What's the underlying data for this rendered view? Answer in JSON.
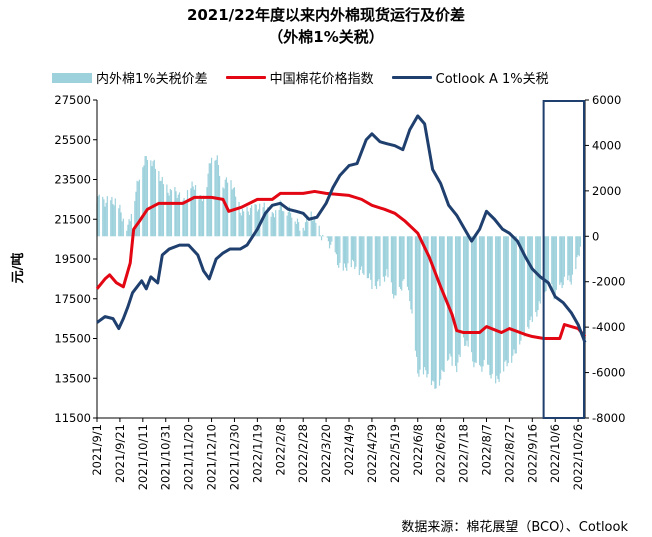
{
  "title": "2021/22年度以来内外棉现货运行及价差",
  "subtitle": "（外棉1%关税）",
  "source": "数据来源：棉花展望（BCO）、Cotlook",
  "colors": {
    "spread": "#9dd1dc",
    "cci": "#e30613",
    "cotlook": "#1f3f6e",
    "box": "#1f3f6e"
  },
  "chart_data": {
    "type": "bar+line",
    "title": "2021/22年度以来内外棉现货运行及价差",
    "subtitle": "（外棉1%关税）",
    "ylabel": "元/吨",
    "y2label": "",
    "ylim": [
      11500,
      27500
    ],
    "y2lim": [
      -8000,
      6000
    ],
    "yticks": [
      "27500",
      "25500",
      "23500",
      "21500",
      "19500",
      "17500",
      "15500",
      "13500",
      "11500"
    ],
    "y2ticks": [
      "6000",
      "4000",
      "2000",
      "0",
      "-2000",
      "-4000",
      "-6000",
      "-8000"
    ],
    "xticks": [
      "2021/9/1",
      "2021/9/21",
      "2021/10/11",
      "2021/10/31",
      "2021/11/20",
      "2021/12/10",
      "2021/12/30",
      "2022/1/19",
      "2022/2/8",
      "2022/2/28",
      "2022/3/20",
      "2022/4/9",
      "2022/4/29",
      "2022/5/19",
      "2022/6/8",
      "2022/6/28",
      "2022/7/18",
      "2022/8/7",
      "2022/8/27",
      "2022/9/16",
      "2022/10/6",
      "2022/10/26"
    ],
    "x_start": "2021-09-01",
    "x_end": "2022-11-01",
    "highlight_range": [
      "2022-09-25",
      "2022-11-01"
    ],
    "legend_position": "top",
    "series": [
      {
        "name": "内外棉1%关税价差",
        "type": "bar",
        "axis": "right",
        "points": [
          [
            "2021-09-01",
            1500
          ],
          [
            "2021-09-10",
            1700
          ],
          [
            "2021-09-20",
            1200
          ],
          [
            "2021-09-28",
            500
          ],
          [
            "2021-10-05",
            1800
          ],
          [
            "2021-10-10",
            3200
          ],
          [
            "2021-10-15",
            3700
          ],
          [
            "2021-10-20",
            3100
          ],
          [
            "2021-10-25",
            2700
          ],
          [
            "2021-10-31",
            2300
          ],
          [
            "2021-11-05",
            1800
          ],
          [
            "2021-11-10",
            1800
          ],
          [
            "2021-11-15",
            1600
          ],
          [
            "2021-11-20",
            2000
          ],
          [
            "2021-11-25",
            2100
          ],
          [
            "2021-11-30",
            1700
          ],
          [
            "2021-12-05",
            2200
          ],
          [
            "2021-12-10",
            3500
          ],
          [
            "2021-12-15",
            3300
          ],
          [
            "2021-12-20",
            2400
          ],
          [
            "2021-12-25",
            2600
          ],
          [
            "2021-12-30",
            1800
          ],
          [
            "2022-01-05",
            1200
          ],
          [
            "2022-01-10",
            1100
          ],
          [
            "2022-01-15",
            1000
          ],
          [
            "2022-01-19",
            1300
          ],
          [
            "2022-01-25",
            1400
          ],
          [
            "2022-02-01",
            700
          ],
          [
            "2022-02-08",
            1600
          ],
          [
            "2022-02-15",
            1000
          ],
          [
            "2022-02-22",
            700
          ],
          [
            "2022-02-28",
            500
          ],
          [
            "2022-03-07",
            800
          ],
          [
            "2022-03-14",
            400
          ],
          [
            "2022-03-20",
            -300
          ],
          [
            "2022-03-27",
            -700
          ],
          [
            "2022-04-03",
            -1400
          ],
          [
            "2022-04-09",
            -1400
          ],
          [
            "2022-04-15",
            -1200
          ],
          [
            "2022-04-22",
            -1500
          ],
          [
            "2022-04-29",
            -2200
          ],
          [
            "2022-05-05",
            -1900
          ],
          [
            "2022-05-12",
            -1800
          ],
          [
            "2022-05-19",
            -2700
          ],
          [
            "2022-05-26",
            -2000
          ],
          [
            "2022-06-01",
            -2800
          ],
          [
            "2022-06-08",
            -5800
          ],
          [
            "2022-06-15",
            -6100
          ],
          [
            "2022-06-22",
            -6500
          ],
          [
            "2022-06-28",
            -6200
          ],
          [
            "2022-07-05",
            -5400
          ],
          [
            "2022-07-12",
            -5600
          ],
          [
            "2022-07-18",
            -4700
          ],
          [
            "2022-07-25",
            -5300
          ],
          [
            "2022-08-01",
            -5800
          ],
          [
            "2022-08-07",
            -5800
          ],
          [
            "2022-08-14",
            -6300
          ],
          [
            "2022-08-21",
            -6000
          ],
          [
            "2022-08-27",
            -5500
          ],
          [
            "2022-09-03",
            -4700
          ],
          [
            "2022-09-10",
            -4300
          ],
          [
            "2022-09-16",
            -3500
          ],
          [
            "2022-09-23",
            -3000
          ],
          [
            "2022-10-01",
            -2000
          ],
          [
            "2022-10-06",
            -2500
          ],
          [
            "2022-10-13",
            -2200
          ],
          [
            "2022-10-20",
            -1800
          ],
          [
            "2022-10-26",
            -900
          ],
          [
            "2022-11-01",
            200
          ]
        ]
      },
      {
        "name": "中国棉花价格指数",
        "type": "line",
        "axis": "left",
        "points": [
          [
            "2021-09-01",
            18000
          ],
          [
            "2021-09-08",
            18500
          ],
          [
            "2021-09-12",
            18700
          ],
          [
            "2021-09-18",
            18300
          ],
          [
            "2021-09-24",
            18100
          ],
          [
            "2021-09-30",
            19300
          ],
          [
            "2021-10-03",
            21000
          ],
          [
            "2021-10-08",
            21400
          ],
          [
            "2021-10-15",
            22000
          ],
          [
            "2021-10-25",
            22300
          ],
          [
            "2021-11-05",
            22300
          ],
          [
            "2021-11-15",
            22300
          ],
          [
            "2021-11-25",
            22600
          ],
          [
            "2021-12-10",
            22600
          ],
          [
            "2021-12-20",
            22500
          ],
          [
            "2021-12-25",
            21900
          ],
          [
            "2022-01-05",
            22100
          ],
          [
            "2022-01-19",
            22500
          ],
          [
            "2022-02-01",
            22500
          ],
          [
            "2022-02-08",
            22800
          ],
          [
            "2022-02-28",
            22800
          ],
          [
            "2022-03-10",
            22900
          ],
          [
            "2022-03-20",
            22800
          ],
          [
            "2022-04-09",
            22700
          ],
          [
            "2022-04-20",
            22500
          ],
          [
            "2022-04-29",
            22200
          ],
          [
            "2022-05-10",
            22000
          ],
          [
            "2022-05-19",
            21800
          ],
          [
            "2022-05-28",
            21400
          ],
          [
            "2022-06-08",
            20800
          ],
          [
            "2022-06-18",
            19600
          ],
          [
            "2022-06-28",
            18100
          ],
          [
            "2022-07-08",
            16700
          ],
          [
            "2022-07-12",
            15900
          ],
          [
            "2022-07-18",
            15800
          ],
          [
            "2022-08-01",
            15800
          ],
          [
            "2022-08-07",
            16100
          ],
          [
            "2022-08-20",
            15800
          ],
          [
            "2022-08-27",
            16000
          ],
          [
            "2022-09-10",
            15700
          ],
          [
            "2022-09-16",
            15600
          ],
          [
            "2022-09-26",
            15500
          ],
          [
            "2022-10-06",
            15500
          ],
          [
            "2022-10-10",
            15500
          ],
          [
            "2022-10-14",
            16200
          ],
          [
            "2022-10-20",
            16100
          ],
          [
            "2022-10-26",
            16000
          ],
          [
            "2022-11-01",
            15600
          ]
        ]
      },
      {
        "name": "Cotlook A 1%关税",
        "type": "line",
        "axis": "left",
        "points": [
          [
            "2021-09-01",
            16300
          ],
          [
            "2021-09-08",
            16600
          ],
          [
            "2021-09-15",
            16500
          ],
          [
            "2021-09-20",
            16000
          ],
          [
            "2021-09-24",
            16500
          ],
          [
            "2021-09-28",
            17100
          ],
          [
            "2021-10-02",
            17800
          ],
          [
            "2021-10-06",
            18100
          ],
          [
            "2021-10-10",
            18400
          ],
          [
            "2021-10-14",
            18000
          ],
          [
            "2021-10-18",
            18600
          ],
          [
            "2021-10-24",
            18300
          ],
          [
            "2021-10-28",
            19700
          ],
          [
            "2021-11-03",
            20000
          ],
          [
            "2021-11-12",
            20200
          ],
          [
            "2021-11-20",
            20200
          ],
          [
            "2021-11-28",
            19700
          ],
          [
            "2021-12-03",
            18900
          ],
          [
            "2021-12-08",
            18500
          ],
          [
            "2021-12-14",
            19500
          ],
          [
            "2021-12-20",
            19800
          ],
          [
            "2021-12-26",
            20000
          ],
          [
            "2022-01-04",
            20000
          ],
          [
            "2022-01-10",
            20200
          ],
          [
            "2022-01-19",
            21000
          ],
          [
            "2022-01-26",
            21800
          ],
          [
            "2022-02-01",
            22200
          ],
          [
            "2022-02-08",
            22300
          ],
          [
            "2022-02-15",
            22000
          ],
          [
            "2022-02-22",
            21900
          ],
          [
            "2022-02-28",
            21800
          ],
          [
            "2022-03-05",
            21500
          ],
          [
            "2022-03-12",
            21600
          ],
          [
            "2022-03-20",
            22300
          ],
          [
            "2022-03-26",
            23100
          ],
          [
            "2022-04-01",
            23700
          ],
          [
            "2022-04-09",
            24200
          ],
          [
            "2022-04-16",
            24300
          ],
          [
            "2022-04-24",
            25500
          ],
          [
            "2022-04-29",
            25800
          ],
          [
            "2022-05-06",
            25400
          ],
          [
            "2022-05-12",
            25300
          ],
          [
            "2022-05-19",
            25200
          ],
          [
            "2022-05-26",
            25000
          ],
          [
            "2022-06-01",
            26000
          ],
          [
            "2022-06-08",
            26700
          ],
          [
            "2022-06-14",
            26300
          ],
          [
            "2022-06-21",
            24000
          ],
          [
            "2022-06-28",
            23300
          ],
          [
            "2022-07-05",
            22200
          ],
          [
            "2022-07-12",
            21700
          ],
          [
            "2022-07-18",
            21100
          ],
          [
            "2022-07-25",
            20400
          ],
          [
            "2022-08-01",
            21000
          ],
          [
            "2022-08-07",
            21900
          ],
          [
            "2022-08-14",
            21500
          ],
          [
            "2022-08-21",
            21000
          ],
          [
            "2022-08-27",
            20800
          ],
          [
            "2022-09-03",
            20400
          ],
          [
            "2022-09-10",
            19600
          ],
          [
            "2022-09-16",
            19000
          ],
          [
            "2022-09-23",
            18600
          ],
          [
            "2022-09-30",
            18300
          ],
          [
            "2022-10-06",
            17600
          ],
          [
            "2022-10-13",
            17300
          ],
          [
            "2022-10-20",
            16800
          ],
          [
            "2022-10-26",
            16200
          ],
          [
            "2022-11-01",
            15300
          ]
        ]
      }
    ]
  }
}
